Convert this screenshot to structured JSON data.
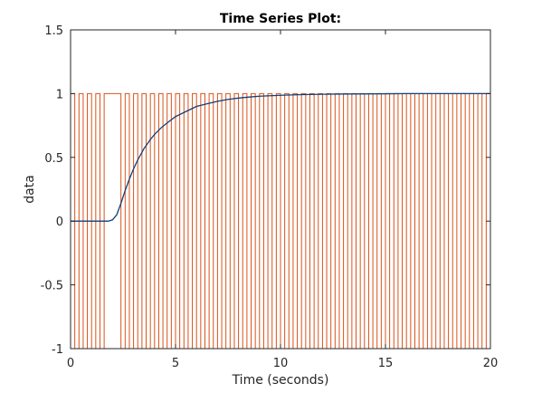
{
  "chart_data": {
    "type": "line",
    "title": "Time Series Plot:",
    "xlabel": "Time (seconds)",
    "ylabel": "data",
    "xlim": [
      0,
      20
    ],
    "ylim": [
      -1,
      1.5
    ],
    "xticks": [
      0,
      5,
      10,
      15,
      20
    ],
    "xtick_labels": [
      "0",
      "5",
      "10",
      "15",
      "20"
    ],
    "yticks": [
      -1,
      -0.5,
      0,
      0.5,
      1,
      1.5
    ],
    "ytick_labels": [
      "-1",
      "-0.5",
      "0",
      "0.5",
      "1",
      "1.5"
    ],
    "grid": false,
    "colors": {
      "response": "#0f3f7a",
      "square_wave": "#d95319",
      "axes": "#262626"
    },
    "series": [
      {
        "color": "#d95319",
        "step": true,
        "x": [
          0,
          0.2,
          0.4,
          0.6,
          0.8,
          1.0,
          1.2,
          1.4,
          1.6,
          1.8,
          2.4,
          2.6,
          2.8,
          3.0,
          3.2,
          3.4,
          3.6,
          3.8,
          4.0,
          4.2,
          4.4,
          4.6,
          4.8,
          5.0,
          5.2,
          5.4,
          5.6,
          5.8,
          6.0,
          6.2,
          6.4,
          6.6,
          6.8,
          7.0,
          7.2,
          7.4,
          7.6,
          7.8,
          8.0,
          8.2,
          8.4,
          8.6,
          8.8,
          9.0,
          9.2,
          9.4,
          9.6,
          9.8,
          10.0,
          10.2,
          10.4,
          10.6,
          10.8,
          11.0,
          11.2,
          11.4,
          11.6,
          11.8,
          12.0,
          12.2,
          12.4,
          12.6,
          12.8,
          13.0,
          13.2,
          13.4,
          13.6,
          13.8,
          14.0,
          14.2,
          14.4,
          14.6,
          14.8,
          15.0,
          15.2,
          15.4,
          15.6,
          15.8,
          16.0,
          16.2,
          16.4,
          16.6,
          16.8,
          17.0,
          17.2,
          17.4,
          17.6,
          17.8,
          18.0,
          18.2,
          18.4,
          18.6,
          18.8,
          19.0,
          19.2,
          19.4,
          19.6,
          19.8,
          20.0
        ],
        "y": [
          1,
          -1,
          1,
          -1,
          1,
          -1,
          1,
          -1,
          1,
          1,
          -1,
          1,
          -1,
          1,
          -1,
          1,
          -1,
          1,
          -1,
          1,
          -1,
          1,
          -1,
          1,
          -1,
          1,
          -1,
          1,
          -1,
          1,
          -1,
          1,
          -1,
          1,
          -1,
          1,
          -1,
          1,
          -1,
          1,
          -1,
          1,
          -1,
          1,
          -1,
          1,
          -1,
          1,
          -1,
          1,
          -1,
          1,
          -1,
          1,
          -1,
          1,
          -1,
          1,
          -1,
          1,
          -1,
          1,
          -1,
          1,
          -1,
          1,
          -1,
          1,
          -1,
          1,
          -1,
          1,
          -1,
          1,
          -1,
          1,
          -1,
          1,
          -1,
          1,
          -1,
          1,
          -1,
          1,
          -1,
          1,
          -1,
          1,
          -1,
          1,
          -1,
          1,
          -1,
          1,
          -1,
          1,
          -1,
          1,
          -1
        ]
      },
      {
        "color": "#0f3f7a",
        "x": [
          0,
          0.5,
          1.0,
          1.5,
          1.8,
          2.0,
          2.2,
          2.4,
          2.6,
          2.8,
          3.0,
          3.2,
          3.5,
          3.8,
          4.0,
          4.3,
          4.6,
          5.0,
          5.5,
          6.0,
          6.5,
          7.0,
          7.5,
          8.0,
          8.5,
          9.0,
          10.0,
          11.0,
          12.0,
          13.0,
          14.0,
          15.0,
          16.0,
          17.0,
          18.0,
          19.0,
          20.0
        ],
        "y": [
          0.0,
          0.0,
          0.0,
          0.0,
          0.0,
          0.01,
          0.05,
          0.14,
          0.24,
          0.33,
          0.41,
          0.48,
          0.57,
          0.64,
          0.68,
          0.73,
          0.77,
          0.82,
          0.86,
          0.9,
          0.92,
          0.94,
          0.955,
          0.965,
          0.973,
          0.98,
          0.987,
          0.992,
          0.995,
          0.997,
          0.998,
          0.999,
          1.0,
          1.0,
          1.0,
          1.0,
          1.0
        ]
      }
    ]
  }
}
